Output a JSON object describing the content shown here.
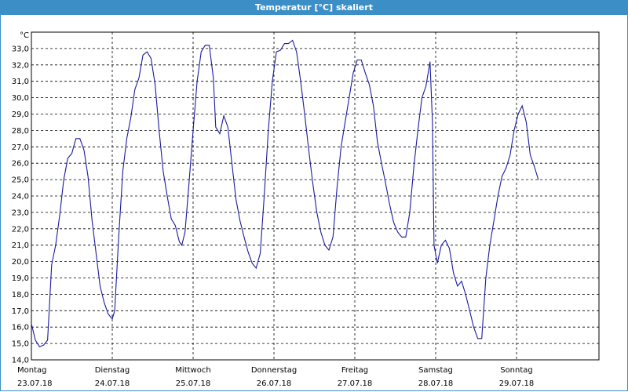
{
  "window": {
    "title": "Temperatur [°C] skaliert"
  },
  "chart_data": {
    "type": "line",
    "ylabel": "°C",
    "ylim": [
      14.0,
      34.0
    ],
    "yticks": [
      "14,0",
      "15,0",
      "16,0",
      "17,0",
      "18,0",
      "19,0",
      "20,0",
      "21,0",
      "22,0",
      "23,0",
      "24,0",
      "25,0",
      "26,0",
      "27,0",
      "28,0",
      "29,0",
      "30,0",
      "31,0",
      "32,0",
      "33,0"
    ],
    "xlim": [
      0,
      7
    ],
    "xticks": [
      {
        "day": "Montag",
        "date": "23.07.18",
        "x": 0
      },
      {
        "day": "Dienstag",
        "date": "24.07.18",
        "x": 1
      },
      {
        "day": "Mittwoch",
        "date": "25.07.18",
        "x": 2
      },
      {
        "day": "Donnerstag",
        "date": "26.07.18",
        "x": 3
      },
      {
        "day": "Freitag",
        "date": "27.07.18",
        "x": 4
      },
      {
        "day": "Samstag",
        "date": "28.07.18",
        "x": 5
      },
      {
        "day": "Sonntag",
        "date": "29.07.18",
        "x": 6
      }
    ],
    "grid": true,
    "line_color": "#1a1aa0",
    "series": [
      {
        "points": [
          [
            0.0,
            16.2
          ],
          [
            0.05,
            15.2
          ],
          [
            0.1,
            14.8
          ],
          [
            0.15,
            14.9
          ],
          [
            0.2,
            15.2
          ],
          [
            0.25,
            19.8
          ],
          [
            0.3,
            21.0
          ],
          [
            0.35,
            22.8
          ],
          [
            0.4,
            25.0
          ],
          [
            0.45,
            26.3
          ],
          [
            0.5,
            26.6
          ],
          [
            0.55,
            27.5
          ],
          [
            0.6,
            27.5
          ],
          [
            0.65,
            26.8
          ],
          [
            0.7,
            25.2
          ],
          [
            0.75,
            22.5
          ],
          [
            0.8,
            20.5
          ],
          [
            0.85,
            18.5
          ],
          [
            0.9,
            17.5
          ],
          [
            0.95,
            16.8
          ],
          [
            1.0,
            16.5
          ],
          [
            1.03,
            17.0
          ],
          [
            1.08,
            21.5
          ],
          [
            1.13,
            25.5
          ],
          [
            1.18,
            27.5
          ],
          [
            1.23,
            28.8
          ],
          [
            1.28,
            30.5
          ],
          [
            1.33,
            31.2
          ],
          [
            1.38,
            32.6
          ],
          [
            1.43,
            32.8
          ],
          [
            1.48,
            32.4
          ],
          [
            1.53,
            30.8
          ],
          [
            1.58,
            28.0
          ],
          [
            1.63,
            25.5
          ],
          [
            1.68,
            24.0
          ],
          [
            1.73,
            22.6
          ],
          [
            1.78,
            22.2
          ],
          [
            1.83,
            21.2
          ],
          [
            1.86,
            21.0
          ],
          [
            1.9,
            21.8
          ],
          [
            1.95,
            24.8
          ],
          [
            2.0,
            28.0
          ],
          [
            2.05,
            31.0
          ],
          [
            2.1,
            32.8
          ],
          [
            2.15,
            33.2
          ],
          [
            2.2,
            33.2
          ],
          [
            2.25,
            31.2
          ],
          [
            2.28,
            28.2
          ],
          [
            2.33,
            27.8
          ],
          [
            2.38,
            28.9
          ],
          [
            2.43,
            28.2
          ],
          [
            2.48,
            26.0
          ],
          [
            2.53,
            23.8
          ],
          [
            2.58,
            22.5
          ],
          [
            2.63,
            21.5
          ],
          [
            2.68,
            20.6
          ],
          [
            2.73,
            19.9
          ],
          [
            2.78,
            19.6
          ],
          [
            2.83,
            20.5
          ],
          [
            2.88,
            24.0
          ],
          [
            2.93,
            28.0
          ],
          [
            2.98,
            31.0
          ],
          [
            3.03,
            32.8
          ],
          [
            3.08,
            32.9
          ],
          [
            3.13,
            33.3
          ],
          [
            3.18,
            33.3
          ],
          [
            3.23,
            33.5
          ],
          [
            3.28,
            32.8
          ],
          [
            3.33,
            31.0
          ],
          [
            3.38,
            29.0
          ],
          [
            3.43,
            26.8
          ],
          [
            3.48,
            24.8
          ],
          [
            3.53,
            23.0
          ],
          [
            3.58,
            21.8
          ],
          [
            3.63,
            21.0
          ],
          [
            3.68,
            20.7
          ],
          [
            3.73,
            21.5
          ],
          [
            3.78,
            24.5
          ],
          [
            3.83,
            27.0
          ],
          [
            3.88,
            28.5
          ],
          [
            3.93,
            30.0
          ],
          [
            3.98,
            31.5
          ],
          [
            4.03,
            32.3
          ],
          [
            4.08,
            32.3
          ],
          [
            4.13,
            31.5
          ],
          [
            4.18,
            30.8
          ],
          [
            4.23,
            29.5
          ],
          [
            4.28,
            27.3
          ],
          [
            4.33,
            26.0
          ],
          [
            4.38,
            24.8
          ],
          [
            4.43,
            23.5
          ],
          [
            4.48,
            22.4
          ],
          [
            4.53,
            21.8
          ],
          [
            4.58,
            21.5
          ],
          [
            4.63,
            21.5
          ],
          [
            4.68,
            23.0
          ],
          [
            4.73,
            25.8
          ],
          [
            4.78,
            28.0
          ],
          [
            4.83,
            30.0
          ],
          [
            4.88,
            30.7
          ],
          [
            4.93,
            32.2
          ],
          [
            4.96,
            28.5
          ],
          [
            4.98,
            21.0
          ],
          [
            5.02,
            19.9
          ],
          [
            5.07,
            21.0
          ],
          [
            5.12,
            21.3
          ],
          [
            5.17,
            20.8
          ],
          [
            5.22,
            19.3
          ],
          [
            5.27,
            18.5
          ],
          [
            5.32,
            18.8
          ],
          [
            5.37,
            18.0
          ],
          [
            5.42,
            17.0
          ],
          [
            5.47,
            16.0
          ],
          [
            5.52,
            15.3
          ],
          [
            5.57,
            15.3
          ],
          [
            5.62,
            19.0
          ],
          [
            5.67,
            21.0
          ],
          [
            5.72,
            22.5
          ],
          [
            5.77,
            24.0
          ],
          [
            5.82,
            25.2
          ],
          [
            5.87,
            25.7
          ],
          [
            5.92,
            26.5
          ],
          [
            5.97,
            28.0
          ],
          [
            6.02,
            29.0
          ],
          [
            6.07,
            29.5
          ],
          [
            6.12,
            28.5
          ],
          [
            6.17,
            26.5
          ],
          [
            6.22,
            25.8
          ],
          [
            6.27,
            25.0
          ]
        ]
      }
    ]
  }
}
